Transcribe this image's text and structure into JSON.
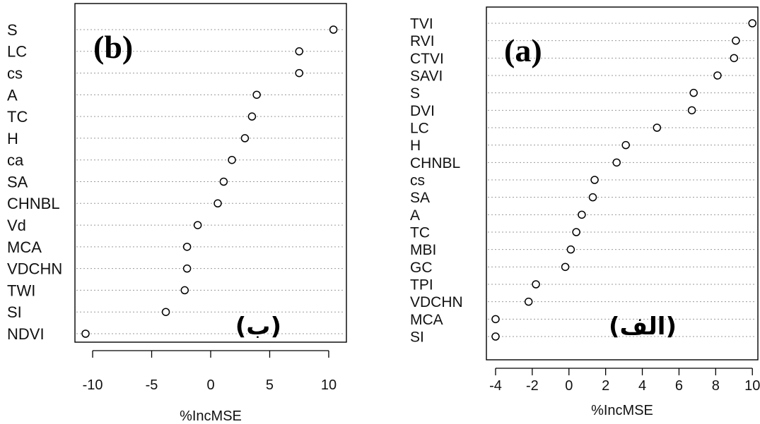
{
  "chart_data": [
    {
      "panel": "b",
      "type": "scatter",
      "panel_label": "(b)",
      "panel_label_alt": "(ب)",
      "xlabel": "%IncMSE",
      "xlim": [
        -11.5,
        11.5
      ],
      "xticks": [
        -10,
        -5,
        0,
        5,
        10
      ],
      "xtick_labels": [
        "-10",
        "-5",
        "0",
        "5",
        "10"
      ],
      "grid": "horizontal dotted",
      "categories": [
        "S",
        "LC",
        "cs",
        "A",
        "TC",
        "H",
        "ca",
        "SA",
        "CHNBL",
        "Vd",
        "MCA",
        "VDCHN",
        "TWI",
        "SI",
        "NDVI"
      ],
      "values": [
        10.4,
        7.5,
        7.5,
        3.9,
        3.5,
        2.9,
        1.8,
        1.1,
        0.6,
        -1.1,
        -2.0,
        -2.0,
        -2.2,
        -3.8,
        -10.6
      ]
    },
    {
      "panel": "a",
      "type": "scatter",
      "panel_label": "(a)",
      "panel_label_alt": "(الف)",
      "xlabel": "%IncMSE",
      "xlim": [
        -4.5,
        10.3
      ],
      "xticks": [
        -4,
        -2,
        0,
        2,
        4,
        6,
        8,
        10
      ],
      "xtick_labels": [
        "-4",
        "-2",
        "0",
        "2",
        "4",
        "6",
        "8",
        "10"
      ],
      "grid": "horizontal dotted",
      "categories": [
        "TVI",
        "RVI",
        "CTVI",
        "SAVI",
        "S",
        "DVI",
        "LC",
        "H",
        "CHNBL",
        "cs",
        "SA",
        "A",
        "TC",
        "MBI",
        "GC",
        "TPI",
        "VDCHN",
        "MCA",
        "SI"
      ],
      "values": [
        10.0,
        9.1,
        9.0,
        8.1,
        6.8,
        6.7,
        4.8,
        3.1,
        2.6,
        1.4,
        1.3,
        0.7,
        0.4,
        0.1,
        -0.2,
        -1.8,
        -2.2,
        -4.0,
        -4.0
      ]
    }
  ]
}
